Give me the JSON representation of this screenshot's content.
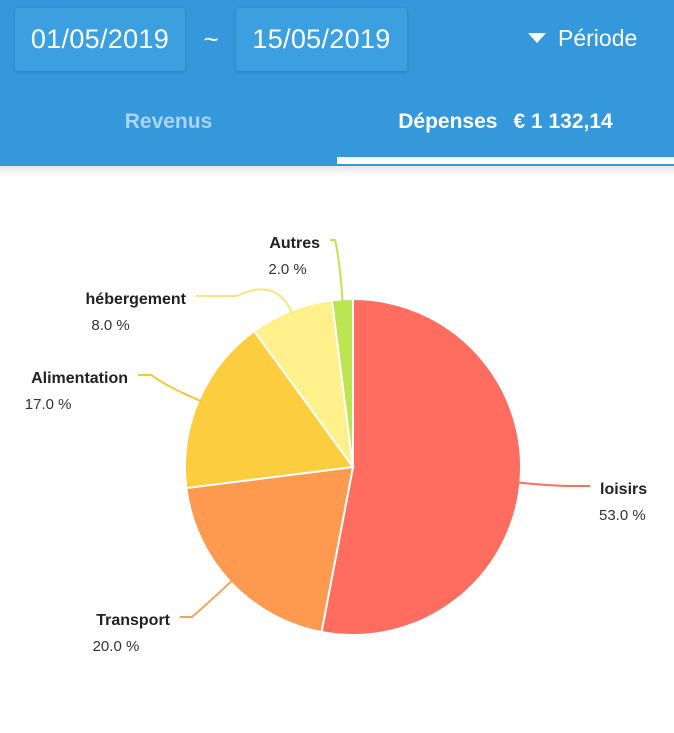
{
  "header": {
    "date_start": "01/05/2019",
    "separator": "~",
    "date_end": "15/05/2019",
    "period_label": "Période",
    "period_icon": "caret-down-icon"
  },
  "tabs": {
    "revenus": "Revenus",
    "depenses": "Dépenses",
    "depenses_total": "€ 1 132,14",
    "selected": "depenses"
  },
  "colors": {
    "header": "#3498db",
    "date_box": "#3c9fe0",
    "tab_inactive": "#a9d4f5"
  },
  "chart_data": {
    "type": "pie",
    "start_angle_deg": 0,
    "direction": "clockwise",
    "slices": [
      {
        "label": "loisirs",
        "value": 53.0,
        "percent_text": "53.0 %",
        "color": "#fe6d60",
        "line_color": "#fe6d60"
      },
      {
        "label": "Transport",
        "value": 20.0,
        "percent_text": "20.0 %",
        "color": "#fe9a4f",
        "line_color": "#f0a45a"
      },
      {
        "label": "Alimentation",
        "value": 17.0,
        "percent_text": "17.0 %",
        "color": "#fdcd40",
        "line_color": "#f3c83c"
      },
      {
        "label": "hébergement",
        "value": 8.0,
        "percent_text": "8.0 %",
        "color": "#fef08a",
        "line_color": "#f6e680"
      },
      {
        "label": "Autres",
        "value": 2.0,
        "percent_text": "2.0 %",
        "color": "#bde552",
        "line_color": "#bde552"
      }
    ]
  }
}
